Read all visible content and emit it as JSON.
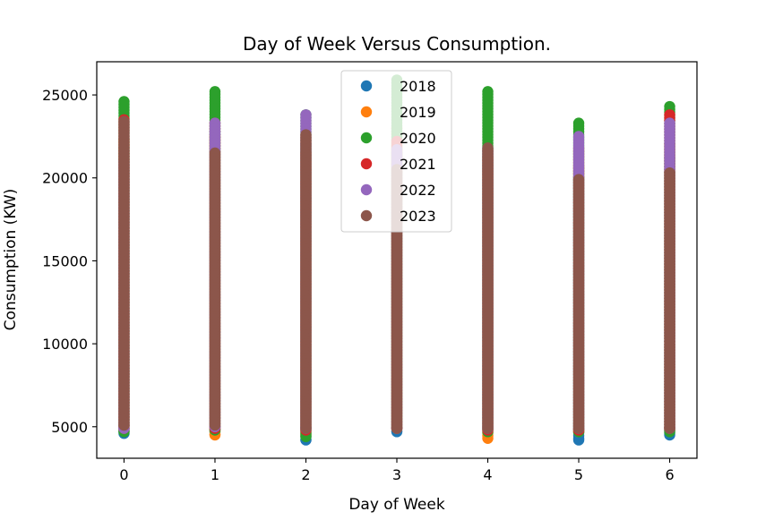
{
  "chart_data": {
    "type": "scatter",
    "title": "Day of Week Versus Consumption.",
    "xlabel": "Day of Week",
    "ylabel": "Consumption (KW)",
    "xlim": [
      -0.3,
      6.3
    ],
    "ylim": [
      3100,
      27000
    ],
    "x_ticks": [
      0,
      1,
      2,
      3,
      4,
      5,
      6
    ],
    "y_ticks": [
      5000,
      10000,
      15000,
      20000,
      25000
    ],
    "legend_position": "upper-center",
    "grid": false,
    "series": [
      {
        "name": "2018",
        "color": "#1f77b4",
        "ranges": [
          [
            0,
            4600,
            21800
          ],
          [
            1,
            4700,
            22800
          ],
          [
            2,
            4200,
            22000
          ],
          [
            3,
            4700,
            21500
          ],
          [
            4,
            4900,
            21800
          ],
          [
            5,
            4200,
            20000
          ],
          [
            6,
            4500,
            21200
          ]
        ]
      },
      {
        "name": "2019",
        "color": "#ff7f0e",
        "ranges": [
          [
            0,
            4800,
            22300
          ],
          [
            1,
            4500,
            22500
          ],
          [
            2,
            4500,
            21500
          ],
          [
            3,
            4900,
            23000
          ],
          [
            4,
            4300,
            21200
          ],
          [
            5,
            4700,
            20600
          ],
          [
            6,
            4800,
            22000
          ]
        ]
      },
      {
        "name": "2020",
        "color": "#2ca02c",
        "ranges": [
          [
            0,
            4700,
            24600
          ],
          [
            1,
            4800,
            25200
          ],
          [
            2,
            4400,
            23800
          ],
          [
            3,
            4900,
            25900
          ],
          [
            4,
            4700,
            25200
          ],
          [
            5,
            4700,
            23300
          ],
          [
            6,
            4700,
            24300
          ]
        ]
      },
      {
        "name": "2021",
        "color": "#d62728",
        "ranges": [
          [
            0,
            4900,
            23500
          ],
          [
            1,
            4900,
            23300
          ],
          [
            2,
            4800,
            22500
          ],
          [
            3,
            4900,
            22200
          ],
          [
            4,
            4800,
            21700
          ],
          [
            5,
            4800,
            21800
          ],
          [
            6,
            4900,
            23800
          ]
        ]
      },
      {
        "name": "2022",
        "color": "#9467bd",
        "ranges": [
          [
            0,
            4900,
            21000
          ],
          [
            1,
            5000,
            23300
          ],
          [
            2,
            4900,
            23800
          ],
          [
            3,
            4900,
            21700
          ],
          [
            4,
            4900,
            21600
          ],
          [
            5,
            4900,
            22500
          ],
          [
            6,
            4900,
            23300
          ]
        ]
      },
      {
        "name": "2023",
        "color": "#8c564b",
        "ranges": [
          [
            0,
            5100,
            23400
          ],
          [
            1,
            5100,
            21500
          ],
          [
            2,
            4900,
            22600
          ],
          [
            3,
            4900,
            20500
          ],
          [
            4,
            4900,
            21800
          ],
          [
            5,
            4900,
            19900
          ],
          [
            6,
            4900,
            20300
          ]
        ]
      }
    ]
  }
}
